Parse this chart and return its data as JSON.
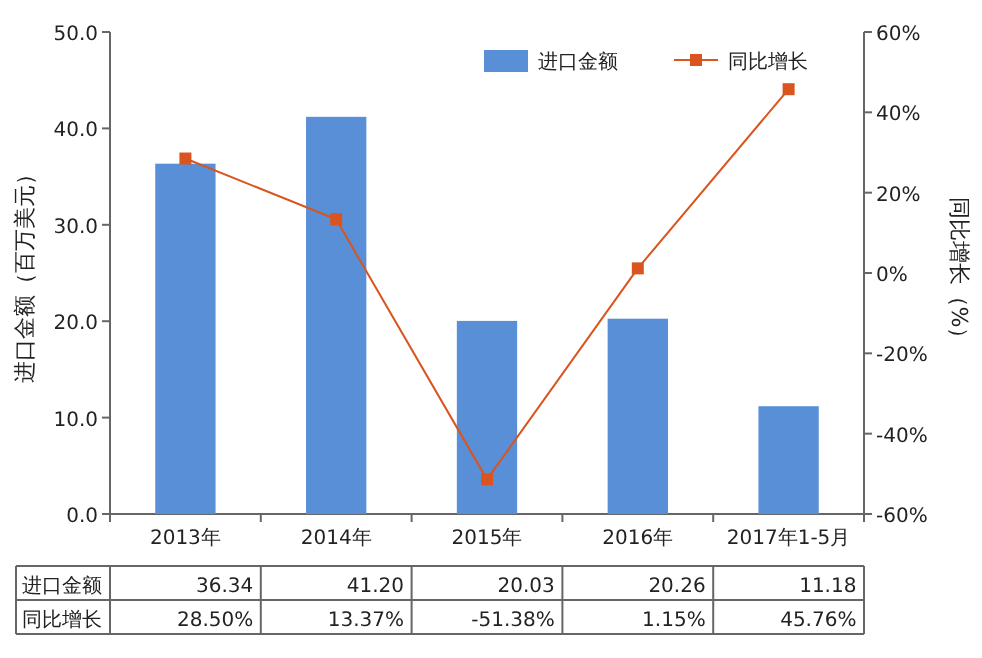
{
  "chart_data": {
    "type": "bar",
    "categories": [
      "2013年",
      "2014年",
      "2015年",
      "2016年",
      "2017年1-5月"
    ],
    "series": [
      {
        "name": "进口金额",
        "axis": "y",
        "color": "#598fd7",
        "values": [
          36.34,
          41.2,
          20.03,
          20.26,
          11.18
        ],
        "value_labels": [
          "36.34",
          "41.20",
          "20.03",
          "20.26",
          "11.18"
        ]
      },
      {
        "name": "同比增长",
        "type": "line",
        "axis": "y2",
        "color": "#d9541e",
        "marker": "square",
        "values": [
          28.5,
          13.37,
          -51.38,
          1.15,
          45.76
        ],
        "value_labels": [
          "28.50%",
          "13.37%",
          "-51.38%",
          "1.15%",
          "45.76%"
        ]
      }
    ],
    "ylabel": "进口金额（百万美元）",
    "y2label": "同比增长（%）",
    "ylim": [
      0,
      50
    ],
    "yticks": [
      {
        "value": 0,
        "label": "0.0"
      },
      {
        "value": 10,
        "label": "10.0"
      },
      {
        "value": 20,
        "label": "20.0"
      },
      {
        "value": 30,
        "label": "30.0"
      },
      {
        "value": 40,
        "label": "40.0"
      },
      {
        "value": 50,
        "label": "50.0"
      }
    ],
    "y2lim": [
      -60,
      60
    ],
    "y2ticks": [
      {
        "value": -60,
        "label": "-60%"
      },
      {
        "value": -40,
        "label": "-40%"
      },
      {
        "value": -20,
        "label": "-20%"
      },
      {
        "value": 0,
        "label": "0%"
      },
      {
        "value": 20,
        "label": "20%"
      },
      {
        "value": 40,
        "label": "40%"
      },
      {
        "value": 60,
        "label": "60%"
      }
    ],
    "legend": "top right",
    "grid": false
  }
}
